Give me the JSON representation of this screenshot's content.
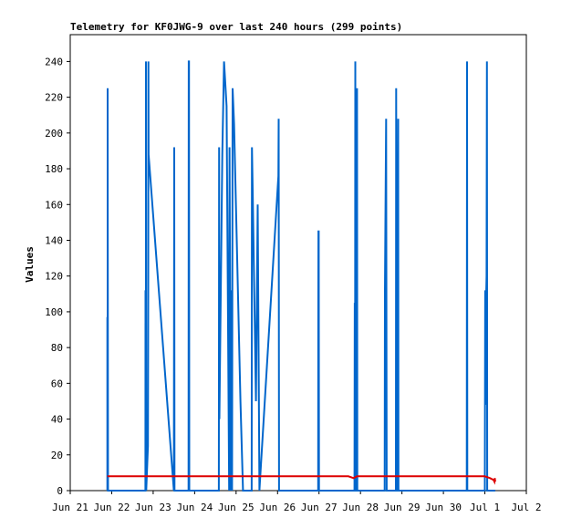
{
  "chart_data": {
    "type": "line",
    "title": "Telemetry for KF0JWG-9 over last 240 hours (299 points)",
    "xlabel": "",
    "ylabel": "Values",
    "xlim": [
      "2024-06-21T00:00",
      "2024-07-02T00:00"
    ],
    "x_tick_labels": [
      "Jun 21",
      "Jun 22",
      "Jun 23",
      "Jun 24",
      "Jun 25",
      "Jun 26",
      "Jun 27",
      "Jun 28",
      "Jun 29",
      "Jun 30",
      "Jul 1",
      "Jul 2"
    ],
    "ylim": [
      0,
      255
    ],
    "y_ticks": [
      0,
      20,
      40,
      60,
      80,
      100,
      120,
      140,
      160,
      180,
      200,
      220,
      240
    ],
    "grid": false,
    "legend": null,
    "series": [
      {
        "color": "#0066cc",
        "points": [
          [
            "2024-06-21T21:30",
            0
          ],
          [
            "2024-06-21T21:30",
            97
          ],
          [
            "2024-06-21T21:40",
            0
          ],
          [
            "2024-06-21T21:40",
            225
          ],
          [
            "2024-06-21T21:50",
            0
          ],
          [
            "2024-06-22T19:30",
            0
          ],
          [
            "2024-06-22T19:35",
            112
          ],
          [
            "2024-06-22T19:45",
            0
          ],
          [
            "2024-06-22T19:50",
            240
          ],
          [
            "2024-06-22T20:00",
            0
          ],
          [
            "2024-06-22T21:00",
            25
          ],
          [
            "2024-06-22T21:10",
            112
          ],
          [
            "2024-06-22T21:15",
            240
          ],
          [
            "2024-06-22T21:20",
            188
          ],
          [
            "2024-06-23T12:00",
            0
          ],
          [
            "2024-06-23T12:10",
            192
          ],
          [
            "2024-06-23T12:20",
            0
          ],
          [
            "2024-06-23T20:30",
            0
          ],
          [
            "2024-06-23T20:35",
            240
          ],
          [
            "2024-06-23T20:45",
            240
          ],
          [
            "2024-06-23T20:55",
            0
          ],
          [
            "2024-06-24T14:00",
            0
          ],
          [
            "2024-06-24T14:10",
            192
          ],
          [
            "2024-06-24T14:20",
            40
          ],
          [
            "2024-06-24T16:00",
            188
          ],
          [
            "2024-06-24T17:00",
            240
          ],
          [
            "2024-06-24T18:30",
            215
          ],
          [
            "2024-06-24T20:00",
            0
          ],
          [
            "2024-06-24T20:10",
            192
          ],
          [
            "2024-06-24T21:00",
            0
          ],
          [
            "2024-06-24T21:10",
            112
          ],
          [
            "2024-06-24T21:40",
            0
          ],
          [
            "2024-06-24T22:00",
            225
          ],
          [
            "2024-06-24T22:50",
            205
          ],
          [
            "2024-06-25T02:30",
            50
          ],
          [
            "2024-06-25T04:00",
            0
          ],
          [
            "2024-06-25T09:00",
            0
          ],
          [
            "2024-06-25T09:10",
            192
          ],
          [
            "2024-06-25T09:40",
            165
          ],
          [
            "2024-06-25T11:30",
            50
          ],
          [
            "2024-06-25T12:30",
            160
          ],
          [
            "2024-06-25T13:30",
            0
          ],
          [
            "2024-06-25T14:00",
            8
          ],
          [
            "2024-06-26T00:30",
            176
          ],
          [
            "2024-06-26T00:40",
            208
          ],
          [
            "2024-06-26T00:50",
            0
          ],
          [
            "2024-06-26T23:30",
            0
          ],
          [
            "2024-06-26T23:35",
            80
          ],
          [
            "2024-06-26T23:40",
            145
          ],
          [
            "2024-06-26T23:50",
            145
          ],
          [
            "2024-06-27T00:00",
            0
          ],
          [
            "2024-06-27T20:30",
            0
          ],
          [
            "2024-06-27T20:40",
            105
          ],
          [
            "2024-06-27T20:50",
            0
          ],
          [
            "2024-06-27T21:00",
            240
          ],
          [
            "2024-06-27T21:10",
            0
          ],
          [
            "2024-06-27T21:50",
            0
          ],
          [
            "2024-06-27T22:00",
            225
          ],
          [
            "2024-06-27T22:10",
            0
          ],
          [
            "2024-06-28T14:00",
            0
          ],
          [
            "2024-06-28T14:10",
            112
          ],
          [
            "2024-06-28T14:50",
            208
          ],
          [
            "2024-06-28T15:00",
            105
          ],
          [
            "2024-06-28T15:10",
            0
          ],
          [
            "2024-06-28T20:30",
            0
          ],
          [
            "2024-06-28T20:40",
            225
          ],
          [
            "2024-06-28T20:50",
            112
          ],
          [
            "2024-06-28T21:00",
            0
          ],
          [
            "2024-06-28T21:30",
            0
          ],
          [
            "2024-06-28T21:40",
            145
          ],
          [
            "2024-06-28T21:50",
            208
          ],
          [
            "2024-06-28T22:00",
            0
          ],
          [
            "2024-06-30T13:30",
            0
          ],
          [
            "2024-06-30T13:40",
            240
          ],
          [
            "2024-06-30T13:50",
            0
          ],
          [
            "2024-07-01T00:00",
            0
          ],
          [
            "2024-07-01T00:10",
            112
          ],
          [
            "2024-07-01T00:20",
            48
          ],
          [
            "2024-07-01T00:40",
            105
          ],
          [
            "2024-07-01T01:00",
            120
          ],
          [
            "2024-07-01T01:10",
            240
          ],
          [
            "2024-07-01T01:20",
            0
          ],
          [
            "2024-07-01T06:00",
            0
          ]
        ]
      },
      {
        "color": "#dd0000",
        "points": [
          [
            "2024-06-21T21:30",
            8
          ],
          [
            "2024-06-27T17:00",
            8
          ],
          [
            "2024-06-27T20:00",
            7
          ],
          [
            "2024-06-27T22:00",
            8
          ],
          [
            "2024-07-01T00:00",
            8
          ],
          [
            "2024-07-01T03:00",
            7
          ],
          [
            "2024-07-01T05:00",
            6
          ],
          [
            "2024-07-01T05:30",
            5
          ],
          [
            "2024-07-01T05:45",
            7
          ],
          [
            "2024-07-01T06:00",
            5
          ]
        ]
      }
    ]
  }
}
